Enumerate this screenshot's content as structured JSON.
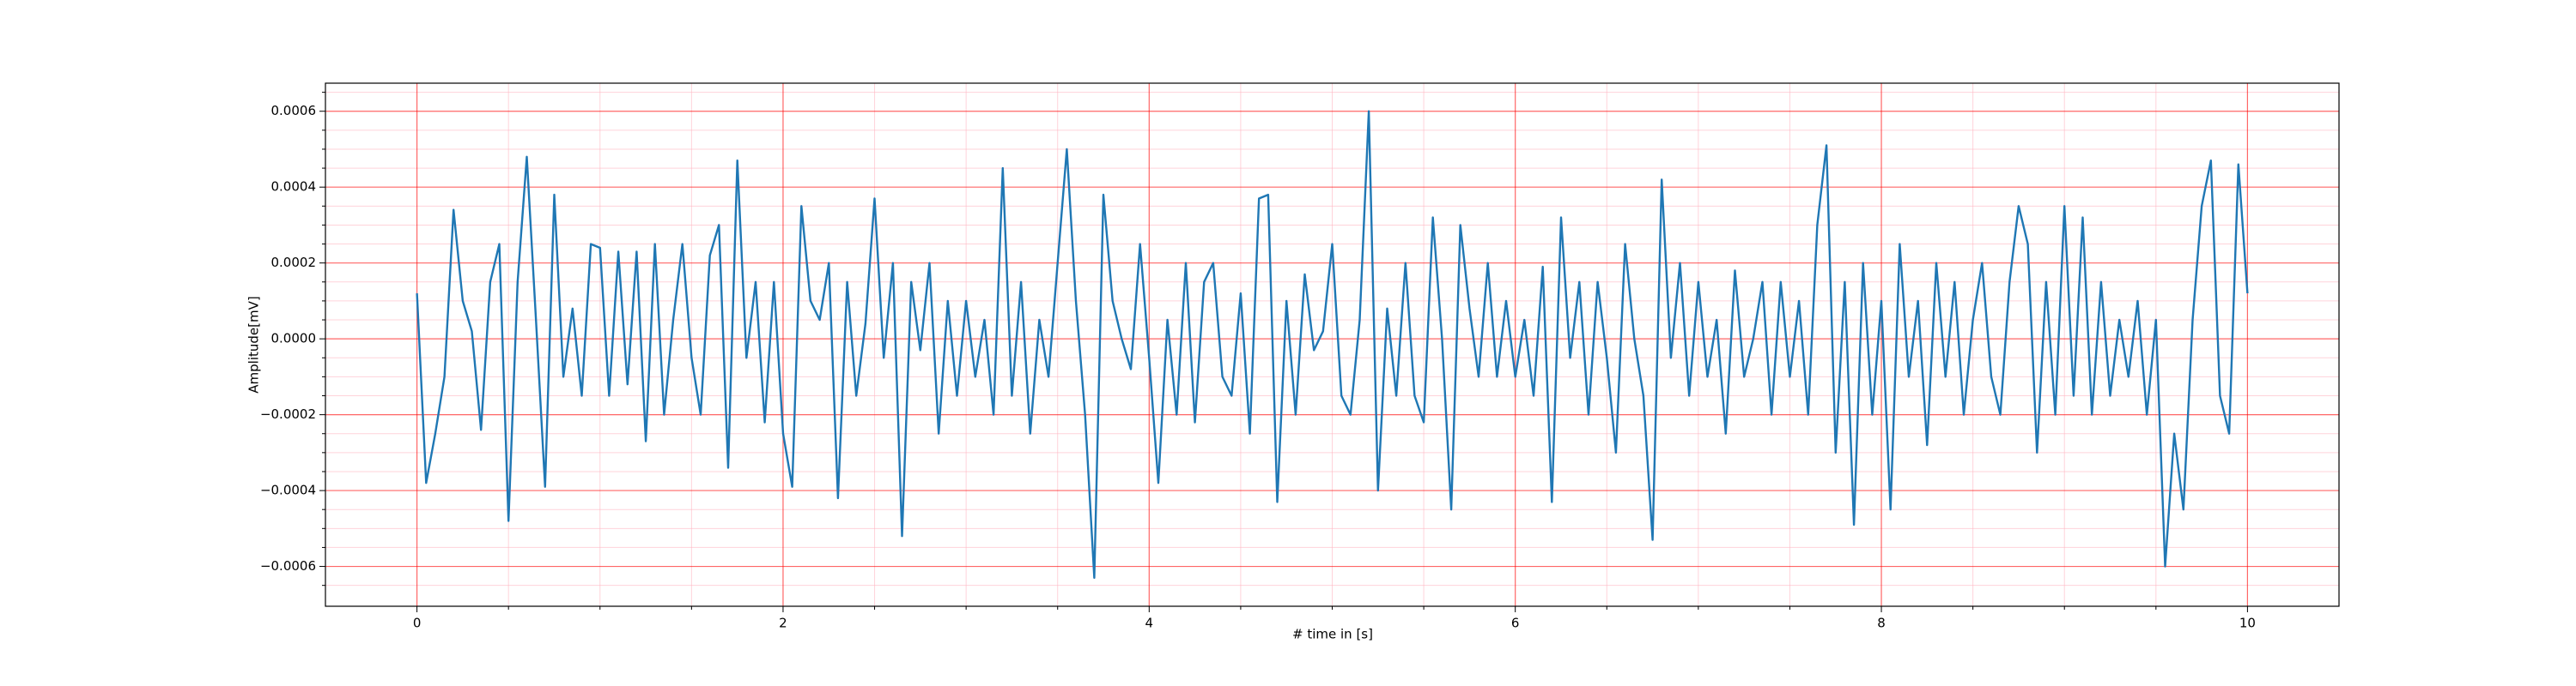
{
  "chart_data": {
    "type": "line",
    "x_label": "# time in [s]",
    "y_label": "Amplitude[mV]",
    "xlim": [
      -0.5,
      10.5
    ],
    "ylim": [
      -0.000705,
      0.000674
    ],
    "xticks": [
      0,
      2,
      4,
      6,
      8,
      10
    ],
    "yticks": [
      {
        "value": -0.0006,
        "label": "−0.0006"
      },
      {
        "value": -0.0004,
        "label": "−0.0004"
      },
      {
        "value": -0.0002,
        "label": "−0.0002"
      },
      {
        "value": 0,
        "label": "0.0000"
      },
      {
        "value": 0.0002,
        "label": "0.0002"
      },
      {
        "value": 0.0004,
        "label": "0.0004"
      },
      {
        "value": 0.0006,
        "label": "0.0006"
      }
    ],
    "xminor_ticks": [
      0.5,
      1,
      1.5,
      2.5,
      3,
      3.5,
      4.5,
      5,
      5.5,
      6.5,
      7,
      7.5,
      8.5,
      9,
      9.5
    ],
    "yminor_ticks": [
      -0.00065,
      -0.00055,
      -0.0005,
      -0.00045,
      -0.00035,
      -0.0003,
      -0.00025,
      -0.00015,
      -0.0001,
      -5e-05,
      5e-05,
      0.0001,
      0.00015,
      0.00025,
      0.0003,
      0.00035,
      0.00045,
      0.0005,
      0.00055,
      0.00065
    ],
    "grid": true,
    "grid_color": "#ff0000",
    "minor_grid_color": "#ffb6c1",
    "x": [
      0,
      0.05,
      0.1,
      0.15,
      0.2,
      0.25,
      0.3,
      0.35,
      0.4,
      0.45,
      0.5,
      0.55,
      0.6,
      0.65,
      0.7,
      0.75,
      0.8,
      0.85,
      0.9,
      0.95,
      1,
      1.05,
      1.1,
      1.15,
      1.2,
      1.25,
      1.3,
      1.35,
      1.4,
      1.45,
      1.5,
      1.55,
      1.6,
      1.65,
      1.7,
      1.75,
      1.8,
      1.85,
      1.9,
      1.95,
      2,
      2.05,
      2.1,
      2.15,
      2.2,
      2.25,
      2.3,
      2.35,
      2.4,
      2.45,
      2.5,
      2.55,
      2.6,
      2.65,
      2.7,
      2.75,
      2.8,
      2.85,
      2.9,
      2.95,
      3,
      3.05,
      3.1,
      3.15,
      3.2,
      3.25,
      3.3,
      3.35,
      3.4,
      3.45,
      3.5,
      3.55,
      3.6,
      3.65,
      3.7,
      3.75,
      3.8,
      3.85,
      3.9,
      3.95,
      4,
      4.05,
      4.1,
      4.15,
      4.2,
      4.25,
      4.3,
      4.35,
      4.4,
      4.45,
      4.5,
      4.55,
      4.6,
      4.65,
      4.7,
      4.75,
      4.8,
      4.85,
      4.9,
      4.95,
      5,
      5.05,
      5.1,
      5.15,
      5.2,
      5.25,
      5.3,
      5.35,
      5.4,
      5.45,
      5.5,
      5.55,
      5.6,
      5.65,
      5.7,
      5.75,
      5.8,
      5.85,
      5.9,
      5.95,
      6,
      6.05,
      6.1,
      6.15,
      6.2,
      6.25,
      6.3,
      6.35,
      6.4,
      6.45,
      6.5,
      6.55,
      6.6,
      6.65,
      6.7,
      6.75,
      6.8,
      6.85,
      6.9,
      6.95,
      7,
      7.05,
      7.1,
      7.15,
      7.2,
      7.25,
      7.3,
      7.35,
      7.4,
      7.45,
      7.5,
      7.55,
      7.6,
      7.65,
      7.7,
      7.75,
      7.8,
      7.85,
      7.9,
      7.95,
      8,
      8.05,
      8.1,
      8.15,
      8.2,
      8.25,
      8.3,
      8.35,
      8.4,
      8.45,
      8.5,
      8.55,
      8.6,
      8.65,
      8.7,
      8.75,
      8.8,
      8.85,
      8.9,
      8.95,
      9,
      9.05,
      9.1,
      9.15,
      9.2,
      9.25,
      9.3,
      9.35,
      9.4,
      9.45,
      9.5,
      9.55,
      9.6,
      9.65,
      9.7,
      9.75,
      9.8,
      9.85,
      9.9,
      9.95,
      10
    ],
    "series": [
      {
        "color": "#1f77b4",
        "values": [
          0.00012,
          -0.00038,
          -0.00025,
          -0.0001,
          0.00034,
          0.0001,
          2e-05,
          -0.00024,
          0.00015,
          0.00025,
          -0.00048,
          0.00015,
          0.00048,
          5e-05,
          -0.00039,
          0.00038,
          -0.0001,
          8e-05,
          -0.00015,
          0.00025,
          0.00024,
          -0.00015,
          0.00023,
          -0.00012,
          0.00023,
          -0.00027,
          0.00025,
          -0.0002,
          5e-05,
          0.00025,
          -5e-05,
          -0.0002,
          0.00022,
          0.0003,
          -0.00034,
          0.00047,
          -5e-05,
          0.00015,
          -0.00022,
          0.00015,
          -0.00025,
          -0.00039,
          0.00035,
          0.0001,
          5e-05,
          0.0002,
          -0.00042,
          0.00015,
          -0.00015,
          4e-05,
          0.00037,
          -5e-05,
          0.0002,
          -0.00052,
          0.00015,
          -3e-05,
          0.0002,
          -0.00025,
          0.0001,
          -0.00015,
          0.0001,
          -0.0001,
          5e-05,
          -0.0002,
          0.00045,
          -0.00015,
          0.00015,
          -0.00025,
          5e-05,
          -0.0001,
          0.0002,
          0.0005,
          0.0001,
          -0.0002,
          -0.00063,
          0.00038,
          0.0001,
          0,
          -8e-05,
          0.00025,
          -5e-05,
          -0.00038,
          5e-05,
          -0.0002,
          0.0002,
          -0.00022,
          0.00015,
          0.0002,
          -0.0001,
          -0.00015,
          0.00012,
          -0.00025,
          0.00037,
          0.00038,
          -0.00043,
          0.0001,
          -0.0002,
          0.00017,
          -3e-05,
          2e-05,
          0.00025,
          -0.00015,
          -0.0002,
          5e-05,
          0.0006,
          -0.0004,
          8e-05,
          -0.00015,
          0.0002,
          -0.00015,
          -0.00022,
          0.00032,
          0,
          -0.00045,
          0.0003,
          8e-05,
          -0.0001,
          0.0002,
          -0.0001,
          0.0001,
          -0.0001,
          5e-05,
          -0.00015,
          0.00019,
          -0.00043,
          0.00032,
          -5e-05,
          0.00015,
          -0.0002,
          0.00015,
          -5e-05,
          -0.0003,
          0.00025,
          0,
          -0.00015,
          -0.00053,
          0.00042,
          -5e-05,
          0.0002,
          -0.00015,
          0.00015,
          -0.0001,
          5e-05,
          -0.00025,
          0.00018,
          -0.0001,
          0,
          0.00015,
          -0.0002,
          0.00015,
          -0.0001,
          0.0001,
          -0.0002,
          0.0003,
          0.00051,
          -0.0003,
          0.00015,
          -0.00049,
          0.0002,
          -0.0002,
          0.0001,
          -0.00045,
          0.00025,
          -0.0001,
          0.0001,
          -0.00028,
          0.0002,
          -0.0001,
          0.00015,
          -0.0002,
          5e-05,
          0.0002,
          -0.0001,
          -0.0002,
          0.00015,
          0.00035,
          0.00025,
          -0.0003,
          0.00015,
          -0.0002,
          0.00035,
          -0.00015,
          0.00032,
          -0.0002,
          0.00015,
          -0.00015,
          5e-05,
          -0.0001,
          0.0001,
          -0.0002,
          5e-05,
          -0.0006,
          -0.00025,
          -0.00045,
          5e-05,
          0.00035,
          0.00047,
          -0.00015,
          -0.00025,
          0.00046,
          0.00012
        ]
      }
    ]
  }
}
